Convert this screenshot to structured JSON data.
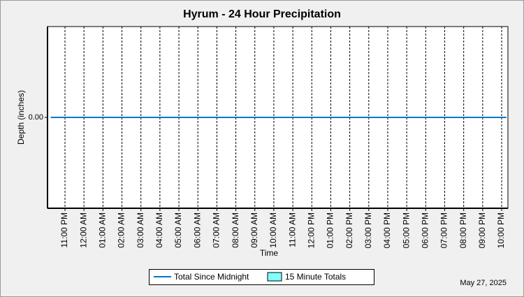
{
  "chart_data": {
    "type": "line",
    "title": "Hyrum - 24 Hour Precipitation",
    "x_label": "Time",
    "y_label": "Depth (inches)",
    "date": "May 27, 2025",
    "xlim": [
      -1.92,
      22.33
    ],
    "ylim": [
      -1,
      1
    ],
    "xticks": [
      {
        "value": -1,
        "label": "11:00 PM"
      },
      {
        "value": 0,
        "label": "12:00 AM"
      },
      {
        "value": 1,
        "label": "01:00 AM"
      },
      {
        "value": 2,
        "label": "02:00 AM"
      },
      {
        "value": 3,
        "label": "03:00 AM"
      },
      {
        "value": 4,
        "label": "04:00 AM"
      },
      {
        "value": 5,
        "label": "05:00 AM"
      },
      {
        "value": 6,
        "label": "06:00 AM"
      },
      {
        "value": 7,
        "label": "07:00 AM"
      },
      {
        "value": 8,
        "label": "08:00 AM"
      },
      {
        "value": 9,
        "label": "09:00 AM"
      },
      {
        "value": 10,
        "label": "10:00 AM"
      },
      {
        "value": 11,
        "label": "11:00 AM"
      },
      {
        "value": 12,
        "label": "12:00 PM"
      },
      {
        "value": 13,
        "label": "01:00 PM"
      },
      {
        "value": 14,
        "label": "02:00 PM"
      },
      {
        "value": 15,
        "label": "03:00 PM"
      },
      {
        "value": 16,
        "label": "04:00 PM"
      },
      {
        "value": 17,
        "label": "05:00 PM"
      },
      {
        "value": 18,
        "label": "06:00 PM"
      },
      {
        "value": 19,
        "label": "07:00 PM"
      },
      {
        "value": 20,
        "label": "08:00 PM"
      },
      {
        "value": 21,
        "label": "09:00 PM"
      },
      {
        "value": 22,
        "label": "10:00 PM"
      }
    ],
    "yticks": [
      {
        "value": 0,
        "label": "0.00"
      }
    ],
    "grid": true,
    "x": [
      -1.75,
      22.25
    ],
    "series": [
      {
        "name": "Total Since Midnight",
        "color": "#0077cc",
        "type": "line",
        "values": [
          0,
          0
        ]
      },
      {
        "name": "15 Minute Totals",
        "color": "#80ffff",
        "type": "bar",
        "values": [
          0,
          0
        ]
      }
    ]
  }
}
